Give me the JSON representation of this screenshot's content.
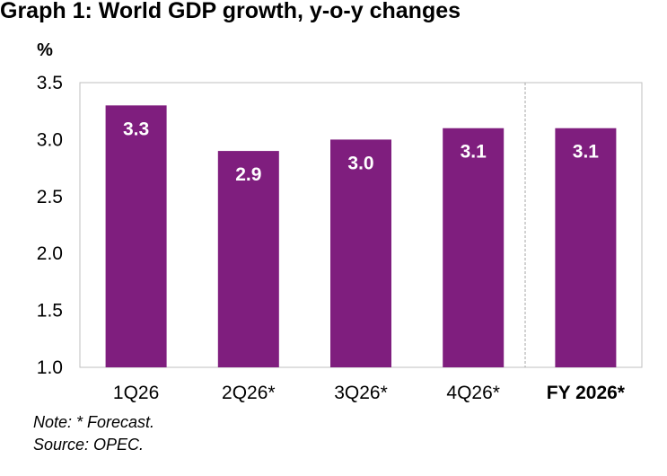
{
  "title": "Graph 1: World GDP growth, y-o-y changes",
  "note": "Note: * Forecast.",
  "source": "Source: OPEC.",
  "colors": {
    "bar": "#7f1e7e",
    "plot_border": "#bfbfbf",
    "divider": "#a6a6a6"
  },
  "chart_data": {
    "type": "bar",
    "categories": [
      "1Q26",
      "2Q26*",
      "3Q26*",
      "4Q26*",
      "FY 2026*"
    ],
    "values": [
      3.3,
      2.9,
      3.0,
      3.1,
      3.1
    ],
    "data_labels": [
      "3.3",
      "2.9",
      "3.0",
      "3.1",
      "3.1"
    ],
    "ylabel": "%",
    "ylim": [
      1.0,
      3.5
    ],
    "yticks": [
      "1.0",
      "1.5",
      "2.0",
      "2.5",
      "3.0",
      "3.5"
    ],
    "grid": false,
    "emphasized_category": "FY 2026*"
  }
}
